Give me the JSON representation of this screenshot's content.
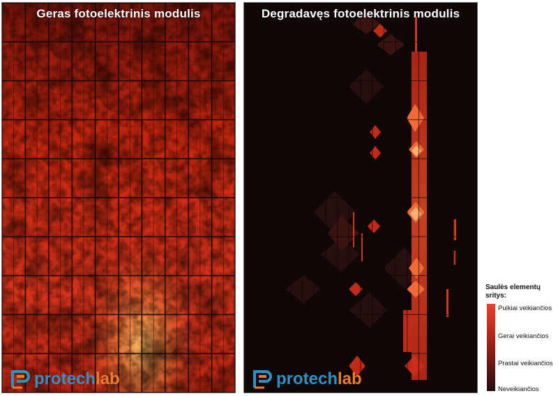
{
  "panels": {
    "good": {
      "title": "Geras fotoelektrinis modulis"
    },
    "bad": {
      "title": "Degradavęs fotoelektrinis modulis"
    }
  },
  "logo": {
    "part1": "protech",
    "part2": "lab",
    "icon": "protechlab-logo-icon",
    "colors": {
      "blue": "#2e93c4",
      "orange": "#ee7d25"
    }
  },
  "legend": {
    "title": "Saulės elementų sritys:",
    "labels": [
      "Puikiai veikiančios",
      "Gerai veikiančios",
      "Prastai veikiančios",
      "Neveikiančios"
    ],
    "colors": [
      "#f0402a",
      "#b52619",
      "#6a1712",
      "#221012"
    ]
  }
}
